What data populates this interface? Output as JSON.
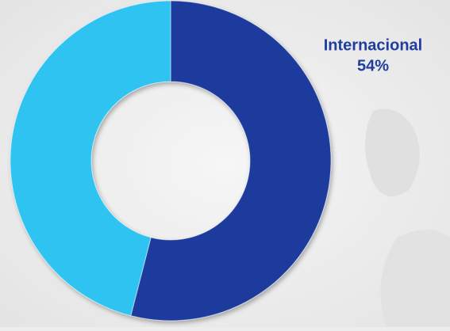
{
  "chart_data": {
    "type": "donut",
    "categories": [
      "Internacional",
      null
    ],
    "values": [
      54,
      46
    ],
    "value_labels": [
      "54%",
      null
    ],
    "colors": [
      "#1c3a9c",
      "#2ec3f0"
    ]
  }
}
